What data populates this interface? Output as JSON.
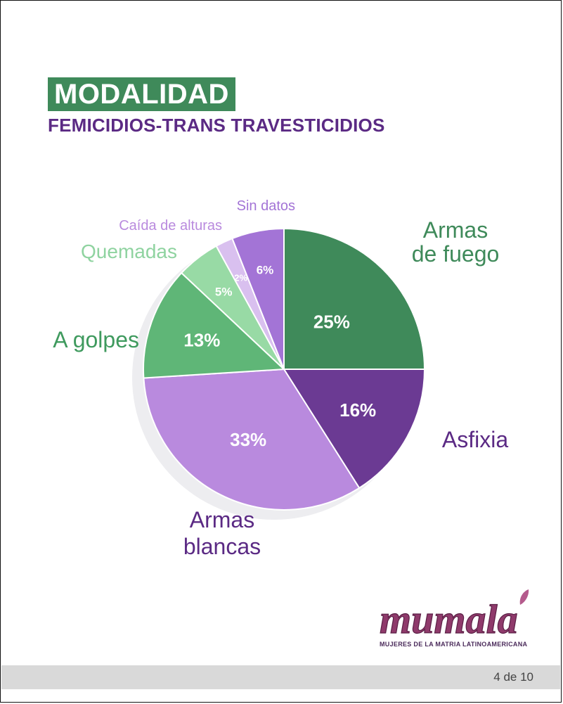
{
  "header": {
    "title": "MODALIDAD",
    "subtitle": "FEMICIDIOS-TRANS TRAVESTICIDIOS"
  },
  "chart_data": {
    "type": "pie",
    "title": "MODALIDAD",
    "subtitle": "FEMICIDIOS-TRANS TRAVESTICIDIOS",
    "slices": [
      {
        "label_lines": [
          "Armas",
          "de fuego"
        ],
        "value": 25,
        "pct_label": "25%",
        "color": "#3f8a5a",
        "label_color": "#3f8a5a"
      },
      {
        "label_lines": [
          "Asfixia"
        ],
        "value": 16,
        "pct_label": "16%",
        "color": "#6b3a93",
        "label_color": "#5b2a84"
      },
      {
        "label_lines": [
          "Armas",
          "blancas"
        ],
        "value": 33,
        "pct_label": "33%",
        "color": "#b98ade",
        "label_color": "#5b2a84"
      },
      {
        "label_lines": [
          "A golpes"
        ],
        "value": 13,
        "pct_label": "13%",
        "color": "#5fb677",
        "label_color": "#3f9a5e"
      },
      {
        "label_lines": [
          "Quemadas"
        ],
        "value": 5,
        "pct_label": "5%",
        "color": "#98daa5",
        "label_color": "#8fd3a0"
      },
      {
        "label_lines": [
          "Caída de alturas"
        ],
        "value": 2,
        "pct_label": "2%",
        "color": "#d9c0ef",
        "label_color": "#b98ade"
      },
      {
        "label_lines": [
          "Sin datos"
        ],
        "value": 6,
        "pct_label": "6%",
        "color": "#a374d6",
        "label_color": "#a374d6"
      }
    ]
  },
  "logo": {
    "brand": "mumala",
    "tagline": "MUJERES DE LA MATRIA LATINOAMERICANA"
  },
  "footer": {
    "page": "4 de 10"
  }
}
